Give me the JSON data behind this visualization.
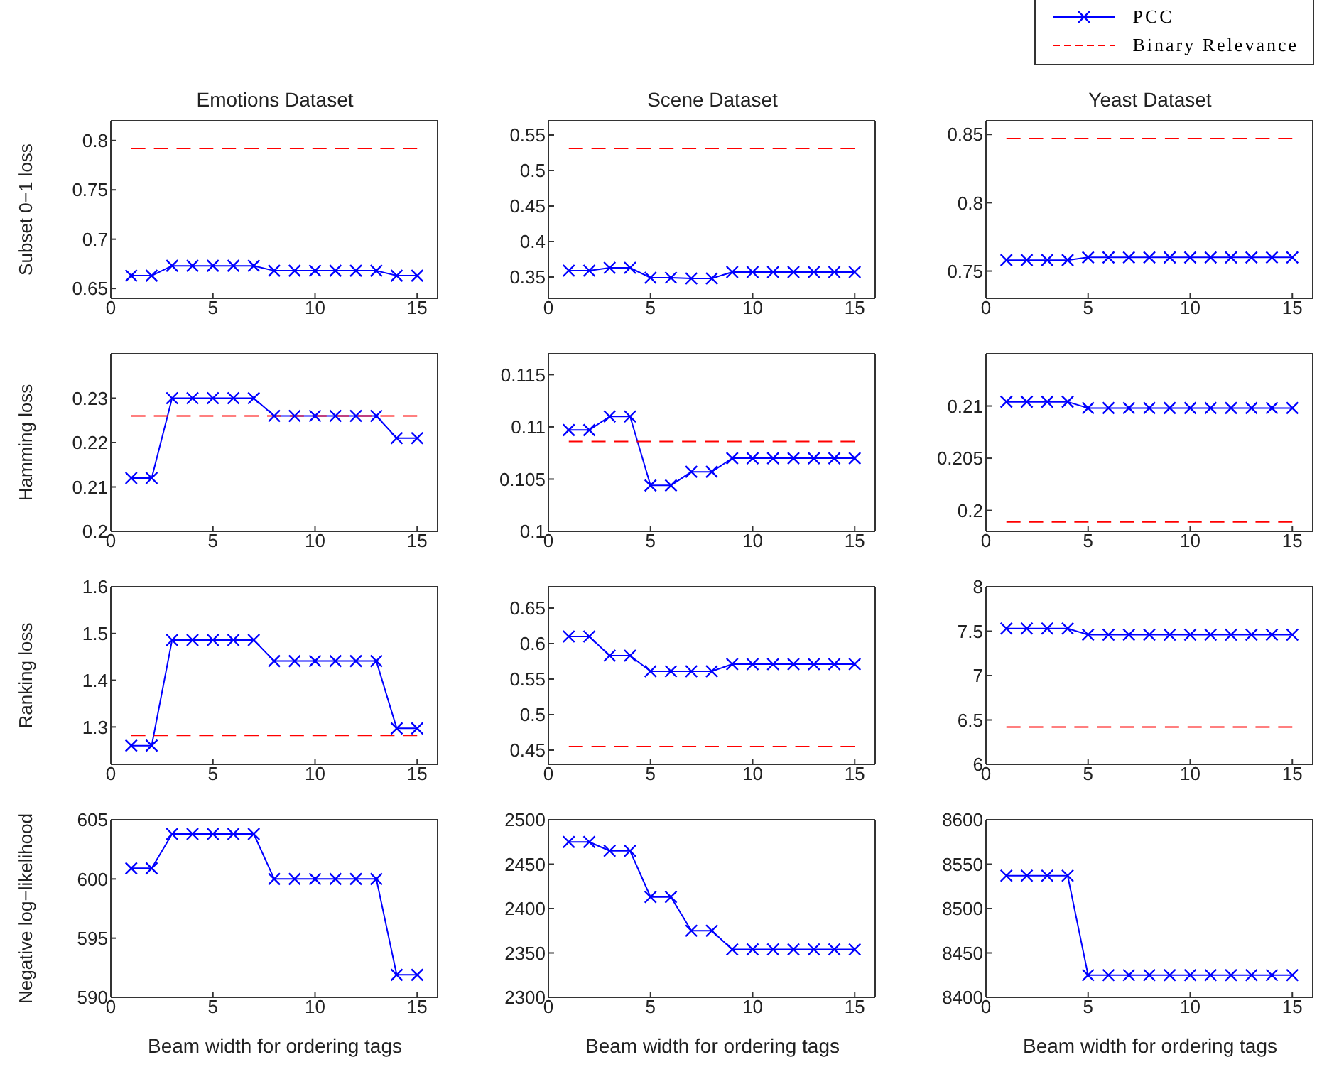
{
  "chart_data": [
    {
      "type": "line",
      "title": "Emotions Dataset",
      "ylabel": "Subset 0−1 loss",
      "x": [
        1,
        2,
        3,
        4,
        5,
        6,
        7,
        8,
        9,
        10,
        11,
        12,
        13,
        14,
        15
      ],
      "xlim": [
        0,
        16
      ],
      "xticks": [
        0,
        5,
        10,
        15
      ],
      "ylim": [
        0.64,
        0.82
      ],
      "yticks": [
        0.65,
        0.7,
        0.75,
        0.8
      ],
      "series": [
        {
          "color": "#0000ff",
          "marker": "cross",
          "line_style": "solid",
          "values": [
            0.663,
            0.663,
            0.673,
            0.673,
            0.673,
            0.673,
            0.673,
            0.668,
            0.668,
            0.668,
            0.668,
            0.668,
            0.668,
            0.663,
            0.663
          ]
        },
        {
          "color": "#ff0000",
          "marker": "none",
          "line_style": "dashed",
          "values": [
            0.792,
            0.792,
            0.792,
            0.792,
            0.792,
            0.792,
            0.792,
            0.792,
            0.792,
            0.792,
            0.792,
            0.792,
            0.792,
            0.792,
            0.792
          ]
        }
      ]
    },
    {
      "type": "line",
      "title": "Scene Dataset",
      "x": [
        1,
        2,
        3,
        4,
        5,
        6,
        7,
        8,
        9,
        10,
        11,
        12,
        13,
        14,
        15
      ],
      "xlim": [
        0,
        16
      ],
      "xticks": [
        0,
        5,
        10,
        15
      ],
      "ylim": [
        0.32,
        0.57
      ],
      "yticks": [
        0.35,
        0.4,
        0.45,
        0.5,
        0.55
      ],
      "series": [
        {
          "color": "#0000ff",
          "marker": "cross",
          "line_style": "solid",
          "values": [
            0.359,
            0.359,
            0.363,
            0.363,
            0.349,
            0.349,
            0.348,
            0.348,
            0.357,
            0.357,
            0.357,
            0.357,
            0.357,
            0.357,
            0.357
          ]
        },
        {
          "color": "#ff0000",
          "marker": "none",
          "line_style": "dashed",
          "values": [
            0.531,
            0.531,
            0.531,
            0.531,
            0.531,
            0.531,
            0.531,
            0.531,
            0.531,
            0.531,
            0.531,
            0.531,
            0.531,
            0.531,
            0.531
          ]
        }
      ]
    },
    {
      "type": "line",
      "title": "Yeast Dataset",
      "legend": "top right",
      "x": [
        1,
        2,
        3,
        4,
        5,
        6,
        7,
        8,
        9,
        10,
        11,
        12,
        13,
        14,
        15
      ],
      "xlim": [
        0,
        16
      ],
      "xticks": [
        0,
        5,
        10,
        15
      ],
      "ylim": [
        0.73,
        0.86
      ],
      "yticks": [
        0.75,
        0.8,
        0.85
      ],
      "series": [
        {
          "name": "PCC",
          "color": "#0000ff",
          "marker": "cross",
          "line_style": "solid",
          "values": [
            0.758,
            0.758,
            0.758,
            0.758,
            0.76,
            0.76,
            0.76,
            0.76,
            0.76,
            0.76,
            0.76,
            0.76,
            0.76,
            0.76,
            0.76
          ]
        },
        {
          "name": "Binary Relevance",
          "color": "#ff0000",
          "marker": "none",
          "line_style": "dashed",
          "values": [
            0.847,
            0.847,
            0.847,
            0.847,
            0.847,
            0.847,
            0.847,
            0.847,
            0.847,
            0.847,
            0.847,
            0.847,
            0.847,
            0.847,
            0.847
          ]
        }
      ]
    },
    {
      "type": "line",
      "ylabel": "Hamming loss",
      "x": [
        1,
        2,
        3,
        4,
        5,
        6,
        7,
        8,
        9,
        10,
        11,
        12,
        13,
        14,
        15
      ],
      "xlim": [
        0,
        16
      ],
      "xticks": [
        0,
        5,
        10,
        15
      ],
      "ylim": [
        0.2,
        0.24
      ],
      "yticks": [
        0.2,
        0.21,
        0.22,
        0.23
      ],
      "series": [
        {
          "color": "#0000ff",
          "marker": "cross",
          "line_style": "solid",
          "values": [
            0.212,
            0.212,
            0.23,
            0.23,
            0.23,
            0.23,
            0.23,
            0.226,
            0.226,
            0.226,
            0.226,
            0.226,
            0.226,
            0.221,
            0.221
          ]
        },
        {
          "color": "#ff0000",
          "marker": "none",
          "line_style": "dashed",
          "values": [
            0.226,
            0.226,
            0.226,
            0.226,
            0.226,
            0.226,
            0.226,
            0.226,
            0.226,
            0.226,
            0.226,
            0.226,
            0.226,
            0.226,
            0.226
          ]
        }
      ]
    },
    {
      "type": "line",
      "x": [
        1,
        2,
        3,
        4,
        5,
        6,
        7,
        8,
        9,
        10,
        11,
        12,
        13,
        14,
        15
      ],
      "xlim": [
        0,
        16
      ],
      "xticks": [
        0,
        5,
        10,
        15
      ],
      "ylim": [
        0.1,
        0.117
      ],
      "yticks": [
        0.1,
        0.105,
        0.11,
        0.115
      ],
      "series": [
        {
          "color": "#0000ff",
          "marker": "cross",
          "line_style": "solid",
          "values": [
            0.1097,
            0.1097,
            0.111,
            0.111,
            0.1044,
            0.1044,
            0.1057,
            0.1057,
            0.107,
            0.107,
            0.107,
            0.107,
            0.107,
            0.107,
            0.107
          ]
        },
        {
          "color": "#ff0000",
          "marker": "none",
          "line_style": "dashed",
          "values": [
            0.1086,
            0.1086,
            0.1086,
            0.1086,
            0.1086,
            0.1086,
            0.1086,
            0.1086,
            0.1086,
            0.1086,
            0.1086,
            0.1086,
            0.1086,
            0.1086,
            0.1086
          ]
        }
      ]
    },
    {
      "type": "line",
      "x": [
        1,
        2,
        3,
        4,
        5,
        6,
        7,
        8,
        9,
        10,
        11,
        12,
        13,
        14,
        15
      ],
      "xlim": [
        0,
        16
      ],
      "xticks": [
        0,
        5,
        10,
        15
      ],
      "ylim": [
        0.198,
        0.215
      ],
      "yticks": [
        0.2,
        0.205,
        0.21
      ],
      "series": [
        {
          "color": "#0000ff",
          "marker": "cross",
          "line_style": "solid",
          "values": [
            0.2104,
            0.2104,
            0.2104,
            0.2104,
            0.2098,
            0.2098,
            0.2098,
            0.2098,
            0.2098,
            0.2098,
            0.2098,
            0.2098,
            0.2098,
            0.2098,
            0.2098
          ]
        },
        {
          "color": "#ff0000",
          "marker": "none",
          "line_style": "dashed",
          "values": [
            0.1989,
            0.1989,
            0.1989,
            0.1989,
            0.1989,
            0.1989,
            0.1989,
            0.1989,
            0.1989,
            0.1989,
            0.1989,
            0.1989,
            0.1989,
            0.1989,
            0.1989
          ]
        }
      ]
    },
    {
      "type": "line",
      "ylabel": "Ranking loss",
      "x": [
        1,
        2,
        3,
        4,
        5,
        6,
        7,
        8,
        9,
        10,
        11,
        12,
        13,
        14,
        15
      ],
      "xlim": [
        0,
        16
      ],
      "xticks": [
        0,
        5,
        10,
        15
      ],
      "ylim": [
        1.22,
        1.6
      ],
      "yticks": [
        1.3,
        1.4,
        1.5,
        1.6
      ],
      "series": [
        {
          "color": "#0000ff",
          "marker": "cross",
          "line_style": "solid",
          "values": [
            1.26,
            1.26,
            1.486,
            1.486,
            1.486,
            1.486,
            1.486,
            1.441,
            1.441,
            1.441,
            1.441,
            1.441,
            1.441,
            1.297,
            1.297
          ]
        },
        {
          "color": "#ff0000",
          "marker": "none",
          "line_style": "dashed",
          "values": [
            1.282,
            1.282,
            1.282,
            1.282,
            1.282,
            1.282,
            1.282,
            1.282,
            1.282,
            1.282,
            1.282,
            1.282,
            1.282,
            1.282,
            1.282
          ]
        }
      ]
    },
    {
      "type": "line",
      "x": [
        1,
        2,
        3,
        4,
        5,
        6,
        7,
        8,
        9,
        10,
        11,
        12,
        13,
        14,
        15
      ],
      "xlim": [
        0,
        16
      ],
      "xticks": [
        0,
        5,
        10,
        15
      ],
      "ylim": [
        0.43,
        0.68
      ],
      "yticks": [
        0.45,
        0.5,
        0.55,
        0.6,
        0.65
      ],
      "series": [
        {
          "color": "#0000ff",
          "marker": "cross",
          "line_style": "solid",
          "values": [
            0.61,
            0.61,
            0.583,
            0.583,
            0.561,
            0.561,
            0.561,
            0.561,
            0.571,
            0.571,
            0.571,
            0.571,
            0.571,
            0.571,
            0.571
          ]
        },
        {
          "color": "#ff0000",
          "marker": "none",
          "line_style": "dashed",
          "values": [
            0.455,
            0.455,
            0.455,
            0.455,
            0.455,
            0.455,
            0.455,
            0.455,
            0.455,
            0.455,
            0.455,
            0.455,
            0.455,
            0.455,
            0.455
          ]
        }
      ]
    },
    {
      "type": "line",
      "x": [
        1,
        2,
        3,
        4,
        5,
        6,
        7,
        8,
        9,
        10,
        11,
        12,
        13,
        14,
        15
      ],
      "xlim": [
        0,
        16
      ],
      "xticks": [
        0,
        5,
        10,
        15
      ],
      "ylim": [
        6,
        8
      ],
      "yticks": [
        6,
        6.5,
        7,
        7.5,
        8
      ],
      "series": [
        {
          "color": "#0000ff",
          "marker": "cross",
          "line_style": "solid",
          "values": [
            7.53,
            7.53,
            7.53,
            7.53,
            7.46,
            7.46,
            7.46,
            7.46,
            7.46,
            7.46,
            7.46,
            7.46,
            7.46,
            7.46,
            7.46
          ]
        },
        {
          "color": "#ff0000",
          "marker": "none",
          "line_style": "dashed",
          "values": [
            6.42,
            6.42,
            6.42,
            6.42,
            6.42,
            6.42,
            6.42,
            6.42,
            6.42,
            6.42,
            6.42,
            6.42,
            6.42,
            6.42,
            6.42
          ]
        }
      ]
    },
    {
      "type": "line",
      "ylabel": "Negative log−likelihood",
      "xlabel": "Beam width for ordering tags",
      "x": [
        1,
        2,
        3,
        4,
        5,
        6,
        7,
        8,
        9,
        10,
        11,
        12,
        13,
        14,
        15
      ],
      "xlim": [
        0,
        16
      ],
      "xticks": [
        0,
        5,
        10,
        15
      ],
      "ylim": [
        590,
        605
      ],
      "yticks": [
        590,
        595,
        600,
        605
      ],
      "series": [
        {
          "color": "#0000ff",
          "marker": "cross",
          "line_style": "solid",
          "values": [
            600.9,
            600.9,
            603.8,
            603.8,
            603.8,
            603.8,
            603.8,
            600,
            600,
            600,
            600,
            600,
            600,
            591.9,
            591.9
          ]
        }
      ]
    },
    {
      "type": "line",
      "xlabel": "Beam width for ordering tags",
      "x": [
        1,
        2,
        3,
        4,
        5,
        6,
        7,
        8,
        9,
        10,
        11,
        12,
        13,
        14,
        15
      ],
      "xlim": [
        0,
        16
      ],
      "xticks": [
        0,
        5,
        10,
        15
      ],
      "ylim": [
        2300,
        2500
      ],
      "yticks": [
        2300,
        2350,
        2400,
        2450,
        2500
      ],
      "series": [
        {
          "color": "#0000ff",
          "marker": "cross",
          "line_style": "solid",
          "values": [
            2475,
            2475,
            2465,
            2465,
            2413,
            2413,
            2375,
            2375,
            2354,
            2354,
            2354,
            2354,
            2354,
            2354,
            2354
          ]
        }
      ]
    },
    {
      "type": "line",
      "xlabel": "Beam width for ordering tags",
      "x": [
        1,
        2,
        3,
        4,
        5,
        6,
        7,
        8,
        9,
        10,
        11,
        12,
        13,
        14,
        15
      ],
      "xlim": [
        0,
        16
      ],
      "xticks": [
        0,
        5,
        10,
        15
      ],
      "ylim": [
        8400,
        8600
      ],
      "yticks": [
        8400,
        8450,
        8500,
        8550,
        8600
      ],
      "series": [
        {
          "color": "#0000ff",
          "marker": "cross",
          "line_style": "solid",
          "values": [
            8537,
            8537,
            8537,
            8537,
            8425,
            8425,
            8425,
            8425,
            8425,
            8425,
            8425,
            8425,
            8425,
            8425,
            8425
          ]
        }
      ]
    }
  ]
}
